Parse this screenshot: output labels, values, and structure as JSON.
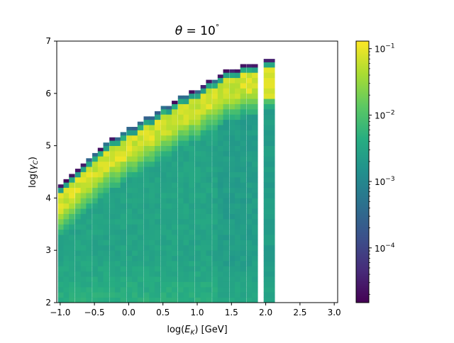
{
  "chart_data": {
    "type": "heatmap",
    "title": "θ = 10°",
    "title_parts": {
      "symbol": "θ",
      "equals": " = 10",
      "degree": "°"
    },
    "xlabel": "log(E_K) [GeV]",
    "xlabel_parts": {
      "prefix": "log(",
      "var": "E",
      "sub": "K",
      "suffix": ") [GeV]"
    },
    "ylabel": "log(γ_C)",
    "ylabel_parts": {
      "prefix": "log(",
      "var": "γ",
      "sub": "C",
      "suffix": ")"
    },
    "xlim": [
      -1.05,
      3.05
    ],
    "ylim": [
      2,
      7
    ],
    "xticks": [
      "−1.0",
      "−0.5",
      "0.0",
      "0.5",
      "1.0",
      "1.5",
      "2.0",
      "2.5",
      "3.0"
    ],
    "xtick_values": [
      -1.0,
      -0.5,
      0.0,
      0.5,
      1.0,
      1.5,
      2.0,
      2.5,
      3.0
    ],
    "yticks": [
      "2",
      "3",
      "4",
      "5",
      "6",
      "7"
    ],
    "ytick_values": [
      2,
      3,
      4,
      5,
      6,
      7
    ],
    "bin_width_logE": 0.0833,
    "bin_height_logGamma": 0.1,
    "x_start": -1.04,
    "columns": [
      {
        "x": -0.99,
        "top": 4.26,
        "edge": "low"
      },
      {
        "x": -0.91,
        "top": 4.36,
        "edge": "low"
      },
      {
        "x": -0.83,
        "top": 4.46,
        "edge": "low"
      },
      {
        "x": -0.74,
        "top": 4.56,
        "edge": "low"
      },
      {
        "x": -0.66,
        "top": 4.66,
        "edge": "low"
      },
      {
        "x": -0.58,
        "top": 4.76,
        "edge": "mid"
      },
      {
        "x": -0.49,
        "top": 4.86,
        "edge": "mid"
      },
      {
        "x": -0.41,
        "top": 4.96,
        "edge": "low"
      },
      {
        "x": -0.33,
        "top": 5.06,
        "edge": "mid"
      },
      {
        "x": -0.24,
        "top": 5.16,
        "edge": "low"
      },
      {
        "x": -0.16,
        "top": 5.16,
        "edge": "mid"
      },
      {
        "x": -0.08,
        "top": 5.26,
        "edge": "mid"
      },
      {
        "x": 0.01,
        "top": 5.36,
        "edge": "mid"
      },
      {
        "x": 0.09,
        "top": 5.36,
        "edge": "mid"
      },
      {
        "x": 0.17,
        "top": 5.46,
        "edge": "mid"
      },
      {
        "x": 0.26,
        "top": 5.56,
        "edge": "mid"
      },
      {
        "x": 0.34,
        "top": 5.56,
        "edge": "mid"
      },
      {
        "x": 0.42,
        "top": 5.66,
        "edge": "mid"
      },
      {
        "x": 0.51,
        "top": 5.76,
        "edge": "mid"
      },
      {
        "x": 0.59,
        "top": 5.76,
        "edge": "mid"
      },
      {
        "x": 0.67,
        "top": 5.86,
        "edge": "low"
      },
      {
        "x": 0.76,
        "top": 5.96,
        "edge": "mid"
      },
      {
        "x": 0.84,
        "top": 5.96,
        "edge": "mid"
      },
      {
        "x": 0.92,
        "top": 6.06,
        "edge": "low"
      },
      {
        "x": 1.01,
        "top": 6.06,
        "edge": "mid"
      },
      {
        "x": 1.09,
        "top": 6.16,
        "edge": "low"
      },
      {
        "x": 1.17,
        "top": 6.26,
        "edge": "low"
      },
      {
        "x": 1.26,
        "top": 6.26,
        "edge": "mid"
      },
      {
        "x": 1.34,
        "top": 6.36,
        "edge": "low"
      },
      {
        "x": 1.42,
        "top": 6.46,
        "edge": "low"
      },
      {
        "x": 1.51,
        "top": 6.46,
        "edge": "low"
      },
      {
        "x": 1.59,
        "top": 6.46,
        "edge": "low"
      },
      {
        "x": 1.67,
        "top": 6.56,
        "edge": "low"
      },
      {
        "x": 1.76,
        "top": 6.56,
        "edge": "low"
      },
      {
        "x": 1.84,
        "top": 6.56,
        "edge": "low"
      },
      {
        "x": 2.05,
        "top": 6.66,
        "edge": "low",
        "isolated": true
      }
    ],
    "colorbar": {
      "scale": "log",
      "range": [
        1.5e-05,
        0.13
      ],
      "ticks": [
        {
          "value": 0.1,
          "base": "10",
          "exp": "−1"
        },
        {
          "value": 0.01,
          "base": "10",
          "exp": "−2"
        },
        {
          "value": 0.001,
          "base": "10",
          "exp": "−3"
        },
        {
          "value": 0.0001,
          "base": "10",
          "exp": "−4"
        }
      ],
      "colormap": "viridis"
    },
    "grid": false,
    "legend": "none"
  }
}
